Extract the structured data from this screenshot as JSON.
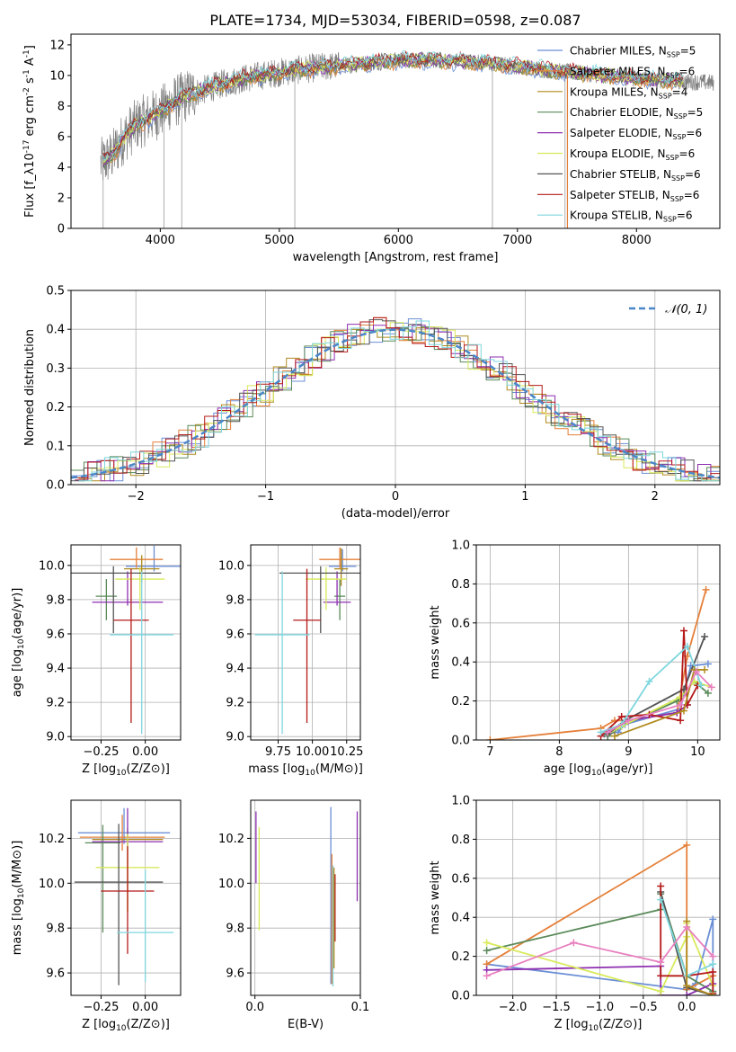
{
  "figure": {
    "title": "PLATE=1734, MJD=53034, FIBERID=0598, z=0.087"
  },
  "models": [
    {
      "name": "Chabrier MILES",
      "nssp": "5",
      "color": "#6b8fd6"
    },
    {
      "name": "Salpeter MILES",
      "nssp": "6",
      "color": "#e5803a"
    },
    {
      "name": "Kroupa MILES",
      "nssp": "4",
      "color": "#b08a1e"
    },
    {
      "name": "Chabrier ELODIE",
      "nssp": "5",
      "color": "#5a8a5a"
    },
    {
      "name": "Salpeter ELODIE",
      "nssp": "6",
      "color": "#8e2fb0"
    },
    {
      "name": "Kroupa ELODIE",
      "nssp": "6",
      "color": "#d8ea5a"
    },
    {
      "name": "Chabrier STELIB",
      "nssp": "6",
      "color": "#555555"
    },
    {
      "name": "Salpeter STELIB",
      "nssp": "6",
      "color": "#b51a1a"
    },
    {
      "name": "Kroupa STELIB",
      "nssp": "6",
      "color": "#7ed6de"
    }
  ],
  "chart_data": [
    {
      "id": "spectrum",
      "type": "line",
      "xlabel": "wavelength [Angstrom, rest frame]",
      "ylabel": "Flux [f_λ10^-17 erg cm^-2 s^-1 A^-1]",
      "xlim": [
        3250,
        8700
      ],
      "ylim": [
        0,
        12.7
      ],
      "xticks": [
        4000,
        5000,
        6000,
        7000,
        8000
      ],
      "yticks": [
        0,
        2,
        4,
        6,
        8,
        10,
        12
      ],
      "grid": false,
      "legend": "top-right",
      "data_color": "#808080",
      "continuum": {
        "x": [
          3500,
          3600,
          3700,
          3800,
          3900,
          4000,
          4100,
          4200,
          4300,
          4500,
          4700,
          5000,
          5300,
          5600,
          6000,
          6300,
          6600,
          7000,
          7300,
          7600,
          8000,
          8400,
          8700
        ],
        "y": [
          4.2,
          4.8,
          6.0,
          6.8,
          7.2,
          7.6,
          8.2,
          8.6,
          8.9,
          9.4,
          9.8,
          10.2,
          10.5,
          10.7,
          11.0,
          11.0,
          10.9,
          10.6,
          10.3,
          10.1,
          9.8,
          9.6,
          9.5
        ]
      }
    },
    {
      "id": "residuals",
      "type": "histogram",
      "xlabel": "(data-model)/error",
      "ylabel": "Normed distribution",
      "xlim": [
        -2.5,
        2.5
      ],
      "ylim": [
        0,
        0.5
      ],
      "xticks": [
        -2,
        -1,
        0,
        1,
        2
      ],
      "yticks": [
        0.0,
        0.1,
        0.2,
        0.3,
        0.4,
        0.5
      ],
      "grid": true,
      "legend": "top-right",
      "gaussian_label": "𝒩(0, 1)",
      "gaussian_color": "#4a86c8"
    },
    {
      "id": "age-vs-Z",
      "type": "errorbar",
      "xlabel": "Z [log10(Z/Z⊙)]",
      "ylabel": "age  [log10(age/yr)]",
      "xlim": [
        -0.42,
        0.2
      ],
      "ylim": [
        8.98,
        10.12
      ],
      "xticks": [
        -0.25,
        0.0
      ],
      "yticks": [
        9.0,
        9.2,
        9.4,
        9.6,
        9.8,
        10.0
      ],
      "grid": true,
      "points": [
        {
          "model": 0,
          "x": 0.05,
          "y": 9.995,
          "xerr": 0.16,
          "yerr": [
            0.03,
            0.12
          ]
        },
        {
          "model": 1,
          "x": -0.05,
          "y": 10.035,
          "xerr": 0.15,
          "yerr": [
            0.05,
            0.07
          ]
        },
        {
          "model": 2,
          "x": -0.02,
          "y": 9.98,
          "xerr": 0.1,
          "yerr": [
            0.08,
            0.08
          ]
        },
        {
          "model": 3,
          "x": -0.22,
          "y": 9.82,
          "xerr": 0.06,
          "yerr": [
            0.14,
            0.1
          ]
        },
        {
          "model": 4,
          "x": -0.1,
          "y": 9.785,
          "xerr": 0.2,
          "yerr": [
            0.02,
            0.18
          ]
        },
        {
          "model": 5,
          "x": -0.03,
          "y": 9.92,
          "xerr": 0.14,
          "yerr": [
            0.18,
            0.07
          ]
        },
        {
          "model": 6,
          "x": -0.18,
          "y": 9.955,
          "xerr": 0.27,
          "yerr": [
            0.35,
            0.04
          ]
        },
        {
          "model": 7,
          "x": -0.08,
          "y": 9.68,
          "xerr": 0.1,
          "yerr": [
            0.6,
            0.3
          ]
        },
        {
          "model": 8,
          "x": -0.02,
          "y": 9.595,
          "xerr": 0.18,
          "yerr": [
            0.58,
            0.37
          ]
        }
      ]
    },
    {
      "id": "age-vs-mass",
      "type": "errorbar",
      "xlabel": "mass [log10(M/M⊙)]",
      "ylabel": "",
      "xlim": [
        9.55,
        10.35
      ],
      "ylim": [
        8.98,
        10.12
      ],
      "xticks": [
        9.75,
        10.0,
        10.25
      ],
      "yticks": [
        9.0,
        9.2,
        9.4,
        9.6,
        9.8,
        10.0
      ],
      "grid": true,
      "points": [
        {
          "model": 0,
          "x": 10.22,
          "y": 9.995,
          "xerr": 0.1,
          "yerr": [
            0.03,
            0.1
          ]
        },
        {
          "model": 1,
          "x": 10.2,
          "y": 10.035,
          "xerr": 0.15,
          "yerr": [
            0.05,
            0.07
          ]
        },
        {
          "model": 2,
          "x": 10.21,
          "y": 9.98,
          "xerr": 0.05,
          "yerr": [
            0.1,
            0.12
          ]
        },
        {
          "model": 3,
          "x": 10.2,
          "y": 9.82,
          "xerr": 0.04,
          "yerr": [
            0.14,
            0.1
          ]
        },
        {
          "model": 4,
          "x": 10.18,
          "y": 9.785,
          "xerr": 0.1,
          "yerr": [
            0.02,
            0.18
          ]
        },
        {
          "model": 5,
          "x": 10.1,
          "y": 9.92,
          "xerr": 0.15,
          "yerr": [
            0.18,
            0.07
          ]
        },
        {
          "model": 6,
          "x": 10.06,
          "y": 9.955,
          "xerr": 0.3,
          "yerr": [
            0.35,
            0.04
          ]
        },
        {
          "model": 7,
          "x": 9.96,
          "y": 9.68,
          "xerr": 0.1,
          "yerr": [
            0.6,
            0.3
          ]
        },
        {
          "model": 8,
          "x": 9.78,
          "y": 9.595,
          "xerr": 0.2,
          "yerr": [
            0.58,
            0.37
          ]
        }
      ]
    },
    {
      "id": "weight-vs-age",
      "type": "line",
      "xlabel": "age  [log10(age/yr)]",
      "ylabel": "mass weight",
      "xlim": [
        6.8,
        10.32
      ],
      "ylim": [
        0,
        1.0
      ],
      "xticks": [
        7,
        8,
        9,
        10
      ],
      "yticks": [
        0.0,
        0.2,
        0.4,
        0.6,
        0.8,
        1.0
      ],
      "grid": true,
      "series": [
        {
          "model": 0,
          "x": [
            8.65,
            8.85,
            8.95,
            9.75,
            9.9,
            10.15
          ],
          "y": [
            0.03,
            0.04,
            0.08,
            0.16,
            0.38,
            0.39
          ]
        },
        {
          "model": 1,
          "x": [
            7.0,
            8.6,
            8.8,
            9.0,
            9.7,
            9.85,
            10.12
          ],
          "y": [
            0.0,
            0.06,
            0.1,
            0.1,
            0.14,
            0.43,
            0.77
          ]
        },
        {
          "model": 3,
          "x": [
            8.7,
            8.9,
            9.7,
            9.95,
            10.15
          ],
          "y": [
            0.02,
            0.07,
            0.2,
            0.3,
            0.24
          ]
        },
        {
          "model": 4,
          "x": [
            8.75,
            9.0,
            9.7,
            9.85
          ],
          "y": [
            0.05,
            0.1,
            0.14,
            0.18
          ]
        },
        {
          "model": 5,
          "x": [
            8.7,
            8.9,
            9.75,
            9.95,
            10.2
          ],
          "y": [
            0.03,
            0.07,
            0.22,
            0.3,
            0.27
          ]
        },
        {
          "model": 6,
          "x": [
            8.7,
            8.95,
            9.8,
            10.1
          ],
          "y": [
            0.03,
            0.1,
            0.26,
            0.53
          ]
        },
        {
          "model": 7,
          "x": [
            8.6,
            8.9,
            9.3,
            9.75,
            9.8,
            9.85,
            10.0
          ],
          "y": [
            0.02,
            0.12,
            0.13,
            0.1,
            0.56,
            0.18,
            0.28
          ]
        },
        {
          "model": 8,
          "x": [
            8.6,
            8.9,
            9.3,
            9.85,
            10.05
          ],
          "y": [
            0.04,
            0.08,
            0.3,
            0.48,
            0.28
          ]
        },
        {
          "model": 2,
          "x": [
            8.8,
            9.8,
            9.95,
            10.1
          ],
          "y": [
            0.02,
            0.15,
            0.36,
            0.36
          ]
        }
      ],
      "pink_line": {
        "x": [
          8.7,
          9.0,
          9.75,
          9.98,
          10.2
        ],
        "y": [
          0.04,
          0.1,
          0.18,
          0.35,
          0.27
        ],
        "color": "#e87fbf"
      }
    },
    {
      "id": "mass-vs-Z",
      "type": "errorbar",
      "xlabel": "Z [log10(Z/Z⊙)]",
      "ylabel": "mass [log10(M/M⊙)]",
      "xlim": [
        -0.42,
        0.2
      ],
      "ylim": [
        9.5,
        10.37
      ],
      "xticks": [
        -0.25,
        0.0
      ],
      "yticks": [
        9.6,
        9.8,
        10.0,
        10.2
      ],
      "grid": true,
      "points": [
        {
          "model": 0,
          "x": -0.12,
          "y": 10.225,
          "xerr": 0.26,
          "yerr": [
            0.05,
            0.11
          ]
        },
        {
          "model": 1,
          "x": -0.13,
          "y": 10.205,
          "xerr": 0.24,
          "yerr": [
            0.06,
            0.1
          ]
        },
        {
          "model": 2,
          "x": -0.1,
          "y": 10.195,
          "xerr": 0.2,
          "yerr": [
            0.32,
            0.05
          ]
        },
        {
          "model": 3,
          "x": -0.24,
          "y": 10.18,
          "xerr": 0.1,
          "yerr": [
            0.4,
            0.08
          ]
        },
        {
          "model": 4,
          "x": -0.1,
          "y": 10.185,
          "xerr": 0.2,
          "yerr": [
            0.02,
            0.15
          ]
        },
        {
          "model": 5,
          "x": -0.1,
          "y": 10.07,
          "xerr": 0.18,
          "yerr": [
            0.2,
            0.15
          ]
        },
        {
          "model": 6,
          "x": -0.15,
          "y": 10.005,
          "xerr": 0.25,
          "yerr": [
            0.46,
            0.26
          ]
        },
        {
          "model": 7,
          "x": -0.1,
          "y": 9.965,
          "xerr": 0.15,
          "yerr": [
            0.28,
            0.2
          ]
        },
        {
          "model": 8,
          "x": 0.0,
          "y": 9.78,
          "xerr": 0.16,
          "yerr": [
            0.22,
            0.28
          ]
        }
      ]
    },
    {
      "id": "mass-vs-EBV",
      "type": "errorbar",
      "xlabel": "E(B-V)",
      "ylabel": "",
      "xlim": [
        -0.004,
        0.1
      ],
      "ylim": [
        9.5,
        10.37
      ],
      "xticks": [
        0.0,
        0.1
      ],
      "yticks": [
        9.6,
        9.8,
        10.0,
        10.2
      ],
      "grid": true,
      "points": [
        {
          "model": 4,
          "x": 0.001,
          "y": 10.15,
          "xerr": 0,
          "yerr": [
            0.15,
            0.17
          ]
        },
        {
          "model": 5,
          "x": 0.004,
          "y": 10.05,
          "xerr": 0,
          "yerr": [
            0.26,
            0.2
          ]
        },
        {
          "model": 0,
          "x": 0.072,
          "y": 10.0,
          "xerr": 0,
          "yerr": [
            0.45,
            0.34
          ]
        },
        {
          "model": 1,
          "x": 0.073,
          "y": 9.95,
          "xerr": 0,
          "yerr": [
            0.4,
            0.18
          ]
        },
        {
          "model": 8,
          "x": 0.074,
          "y": 9.8,
          "xerr": 0,
          "yerr": [
            0.26,
            0.28
          ]
        },
        {
          "model": 7,
          "x": 0.076,
          "y": 9.89,
          "xerr": 0,
          "yerr": [
            0.15,
            0.15
          ]
        },
        {
          "model": 2,
          "x": 0.075,
          "y": 9.82,
          "xerr": 0,
          "yerr": [
            0.2,
            0.25
          ]
        },
        {
          "model": 4,
          "x": 0.097,
          "y": 10.1,
          "xerr": 0,
          "yerr": [
            0.18,
            0.22
          ]
        }
      ]
    },
    {
      "id": "weight-vs-Z",
      "type": "line",
      "xlabel": "Z [log10(Z/Z⊙)]",
      "ylabel": "mass weight",
      "xlim": [
        -2.42,
        0.38
      ],
      "ylim": [
        0,
        1.0
      ],
      "xticks": [
        -2.0,
        -1.5,
        -1.0,
        -0.5,
        0.0
      ],
      "yticks": [
        0.0,
        0.2,
        0.4,
        0.6,
        0.8,
        1.0
      ],
      "grid": true,
      "series": [
        {
          "model": 0,
          "x": [
            -2.3,
            0.0,
            0.1,
            0.3,
            0.3
          ],
          "y": [
            0.16,
            0.03,
            0.06,
            0.39,
            0.02
          ]
        },
        {
          "model": 1,
          "x": [
            -2.3,
            0.0,
            0.0,
            0.3
          ],
          "y": [
            0.16,
            0.77,
            0.03,
            0.1
          ]
        },
        {
          "model": 3,
          "x": [
            -2.3,
            -0.3,
            -0.3,
            0.0,
            0.3
          ],
          "y": [
            0.23,
            0.44,
            0.52,
            0.1,
            0.02
          ]
        },
        {
          "model": 4,
          "x": [
            -2.3,
            -0.3,
            -0.3,
            0.0,
            0.3
          ],
          "y": [
            0.13,
            0.15,
            0.0,
            0.0,
            0.06
          ]
        },
        {
          "model": 5,
          "x": [
            -2.3,
            -0.3,
            0.0,
            0.0,
            0.3
          ],
          "y": [
            0.27,
            0.02,
            0.3,
            0.37,
            0.05
          ]
        },
        {
          "model": 6,
          "x": [
            -0.3,
            0.0,
            0.3
          ],
          "y": [
            0.53,
            0.04,
            0.0
          ]
        },
        {
          "model": 7,
          "x": [
            -0.3,
            -0.3,
            0.0,
            0.3,
            0.3
          ],
          "y": [
            0.56,
            0.1,
            0.1,
            0.12,
            0.01
          ]
        },
        {
          "model": 8,
          "x": [
            -0.3,
            0.0,
            0.3
          ],
          "y": [
            0.49,
            0.1,
            0.16
          ]
        },
        {
          "model": 2,
          "x": [
            0.0,
            0.0,
            0.3
          ],
          "y": [
            0.38,
            0.05,
            0.0
          ]
        }
      ],
      "pink_line": {
        "x": [
          -2.3,
          -1.3,
          -0.3,
          0.0,
          0.3
        ],
        "y": [
          0.1,
          0.27,
          0.17,
          0.35,
          0.2
        ],
        "color": "#e87fbf"
      }
    }
  ]
}
